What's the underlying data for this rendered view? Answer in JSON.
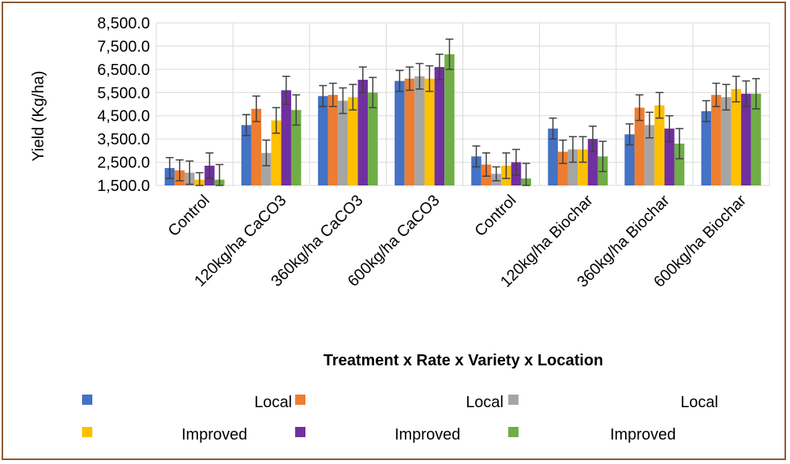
{
  "chart_data": {
    "type": "bar",
    "title": "",
    "xlabel": "Treatment x Rate x Variety x Location",
    "ylabel": "Yield (Kg/ha)",
    "ylim": [
      1500,
      8500
    ],
    "yticks": [
      "1,500.0",
      "2,500.0",
      "3,500.0",
      "4,500.0",
      "5,500.0",
      "6,500.0",
      "7,500.0",
      "8,500.0"
    ],
    "ytick_values": [
      1500,
      2500,
      3500,
      4500,
      5500,
      6500,
      7500,
      8500
    ],
    "grid": "horizontal",
    "legend_position": "bottom",
    "categories": [
      "Control",
      "120kg/ha CaCO3",
      "360kg/ha CaCO3",
      "600kg/ha CaCO3",
      "Control",
      "120kg/ha Biochar",
      "360kg/ha Biochar",
      "600kg/ha Biochar"
    ],
    "series": [
      {
        "name": "Local",
        "color": "#4472c4",
        "values": [
          2250,
          4100,
          5350,
          6000,
          2750,
          3950,
          3700,
          4700
        ],
        "errors": [
          450,
          450,
          450,
          450,
          450,
          450,
          450,
          450
        ]
      },
      {
        "name": "Local",
        "color": "#ed7d31",
        "values": [
          2150,
          4800,
          5400,
          6100,
          2400,
          2950,
          4850,
          5400
        ],
        "errors": [
          450,
          550,
          500,
          500,
          500,
          500,
          550,
          500
        ]
      },
      {
        "name": "Local",
        "color": "#a5a5a5",
        "values": [
          2050,
          2900,
          5150,
          6200,
          2000,
          3050,
          4100,
          5300
        ],
        "errors": [
          500,
          550,
          550,
          550,
          300,
          550,
          550,
          550
        ]
      },
      {
        "name": "Improved",
        "color": "#ffc000",
        "values": [
          1750,
          4300,
          5300,
          6100,
          2350,
          3050,
          4950,
          5650
        ],
        "errors": [
          300,
          550,
          550,
          550,
          550,
          550,
          550,
          550
        ]
      },
      {
        "name": "Improved",
        "color": "#7030a0",
        "values": [
          2350,
          5600,
          6050,
          6600,
          2500,
          3500,
          3950,
          5450
        ],
        "errors": [
          550,
          600,
          550,
          550,
          550,
          550,
          550,
          550
        ]
      },
      {
        "name": "Improved",
        "color": "#70ad47",
        "values": [
          1750,
          4750,
          5500,
          7150,
          1800,
          2750,
          3300,
          5450
        ],
        "errors": [
          650,
          650,
          650,
          650,
          650,
          650,
          650,
          650
        ]
      }
    ]
  }
}
